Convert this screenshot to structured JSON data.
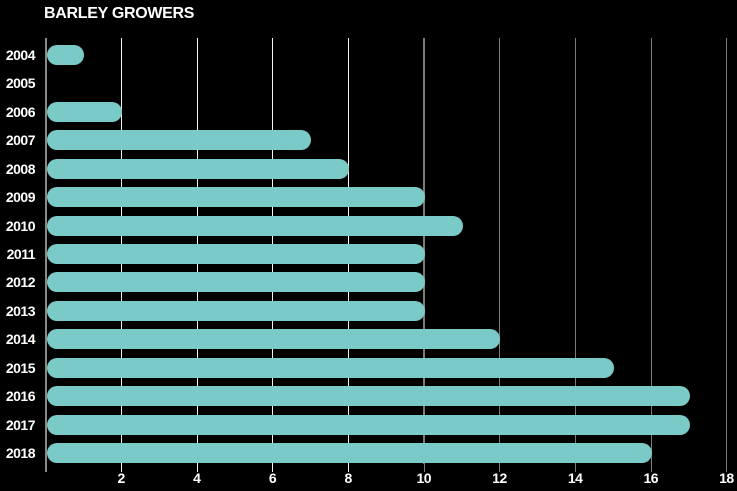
{
  "title": "BARLEY GROWERS",
  "chart_data": {
    "type": "bar",
    "orientation": "horizontal",
    "title": "BARLEY GROWERS",
    "categories": [
      "2004",
      "2005",
      "2006",
      "2007",
      "2008",
      "2009",
      "2010",
      "2011",
      "2012",
      "2013",
      "2014",
      "2015",
      "2016",
      "2017",
      "2018"
    ],
    "values": [
      1,
      0,
      2,
      7,
      8,
      10,
      11,
      10,
      10,
      10,
      12,
      15,
      17,
      17,
      16
    ],
    "xlabel": "",
    "ylabel": "",
    "xlim": [
      0,
      18.3
    ],
    "x_ticks": [
      2,
      4,
      6,
      8,
      10,
      12,
      14,
      16,
      18
    ],
    "grid": "vertical",
    "legend": "none",
    "colors": {
      "background": "#000000",
      "bar": "#7acbc7",
      "grid_light": "#f5f5f5",
      "grid_dark": "#7b7b7b",
      "axis": "#8a8a8a",
      "text": "#ffffff"
    }
  }
}
